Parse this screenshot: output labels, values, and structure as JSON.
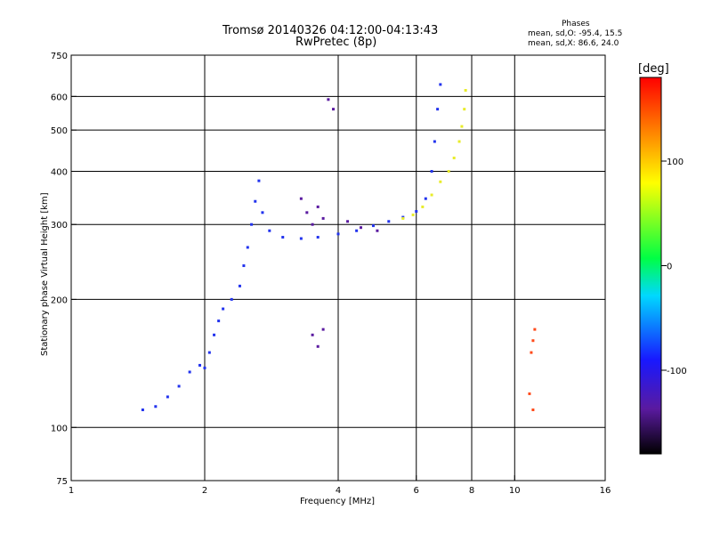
{
  "header": {
    "title_line1": "Tromsø 20140326 04:12:00-04:13:43",
    "title_line2": "RwPretec (8p)",
    "phases_title": "Phases",
    "phases_o": "mean, sd,O: -95.4, 15.5",
    "phases_x": "mean, sd,X:  86.6, 24.0"
  },
  "colorbar": {
    "label": "[deg]",
    "range": [
      -180,
      180
    ],
    "ticks": [
      "100",
      "0",
      "-100"
    ]
  },
  "chart_data": {
    "type": "scatter",
    "xlabel": "Frequency [MHz]",
    "ylabel": "Stationary phase Virtual Height [km]",
    "xscale": "log",
    "yscale": "log",
    "xlim": [
      1,
      16
    ],
    "ylim": [
      75,
      750
    ],
    "xticks": [
      1,
      2,
      4,
      6,
      8,
      10,
      16
    ],
    "xtick_labels": [
      "1",
      "2",
      "4",
      "6",
      "8",
      "10",
      "16"
    ],
    "yticks": [
      75,
      100,
      200,
      300,
      400,
      500,
      600,
      750
    ],
    "ytick_labels": [
      "75",
      "100",
      "200",
      "300",
      "400",
      "500",
      "600",
      "750"
    ],
    "x_grid_lines": [
      2,
      4,
      6,
      8,
      10
    ],
    "y_grid_lines": [
      100,
      200,
      300,
      400,
      500,
      600
    ],
    "traces": [
      {
        "phase": -100,
        "color": "#2233ee",
        "points": [
          [
            1.45,
            110
          ],
          [
            1.55,
            112
          ],
          [
            1.65,
            118
          ],
          [
            1.75,
            125
          ],
          [
            1.85,
            135
          ],
          [
            1.95,
            140
          ],
          [
            2.0,
            138
          ],
          [
            2.05,
            150
          ],
          [
            2.1,
            165
          ],
          [
            2.15,
            178
          ],
          [
            2.2,
            190
          ],
          [
            2.3,
            200
          ],
          [
            2.4,
            215
          ],
          [
            2.45,
            240
          ],
          [
            2.5,
            265
          ],
          [
            2.55,
            300
          ],
          [
            2.6,
            340
          ],
          [
            2.65,
            380
          ],
          [
            2.7,
            320
          ],
          [
            2.8,
            290
          ],
          [
            3.0,
            280
          ],
          [
            3.3,
            278
          ],
          [
            3.6,
            280
          ],
          [
            4.0,
            285
          ],
          [
            4.4,
            290
          ],
          [
            4.8,
            298
          ],
          [
            5.2,
            305
          ],
          [
            5.6,
            312
          ],
          [
            6.0,
            322
          ],
          [
            6.3,
            345
          ],
          [
            6.5,
            400
          ],
          [
            6.6,
            470
          ],
          [
            6.7,
            560
          ],
          [
            6.8,
            640
          ]
        ]
      },
      {
        "phase": 90,
        "color": "#e8ec2a",
        "points": [
          [
            5.6,
            310
          ],
          [
            5.9,
            316
          ],
          [
            6.2,
            330
          ],
          [
            6.5,
            352
          ],
          [
            6.8,
            378
          ],
          [
            7.1,
            400
          ],
          [
            7.3,
            430
          ],
          [
            7.5,
            470
          ],
          [
            7.6,
            510
          ],
          [
            7.7,
            560
          ],
          [
            7.75,
            620
          ]
        ]
      },
      {
        "phase": -130,
        "color": "#5a1aa0",
        "points": [
          [
            3.3,
            345
          ],
          [
            3.4,
            320
          ],
          [
            3.5,
            300
          ],
          [
            3.6,
            330
          ],
          [
            3.7,
            310
          ],
          [
            3.5,
            165
          ],
          [
            3.6,
            155
          ],
          [
            3.7,
            170
          ],
          [
            3.9,
            560
          ],
          [
            3.8,
            590
          ],
          [
            4.2,
            305
          ],
          [
            4.5,
            295
          ],
          [
            4.9,
            290
          ]
        ]
      },
      {
        "phase": 120,
        "color": "#ff4a1a",
        "points": [
          [
            10.8,
            120
          ],
          [
            10.9,
            150
          ],
          [
            11.0,
            160
          ],
          [
            11.1,
            170
          ],
          [
            11.0,
            110
          ]
        ]
      }
    ]
  }
}
